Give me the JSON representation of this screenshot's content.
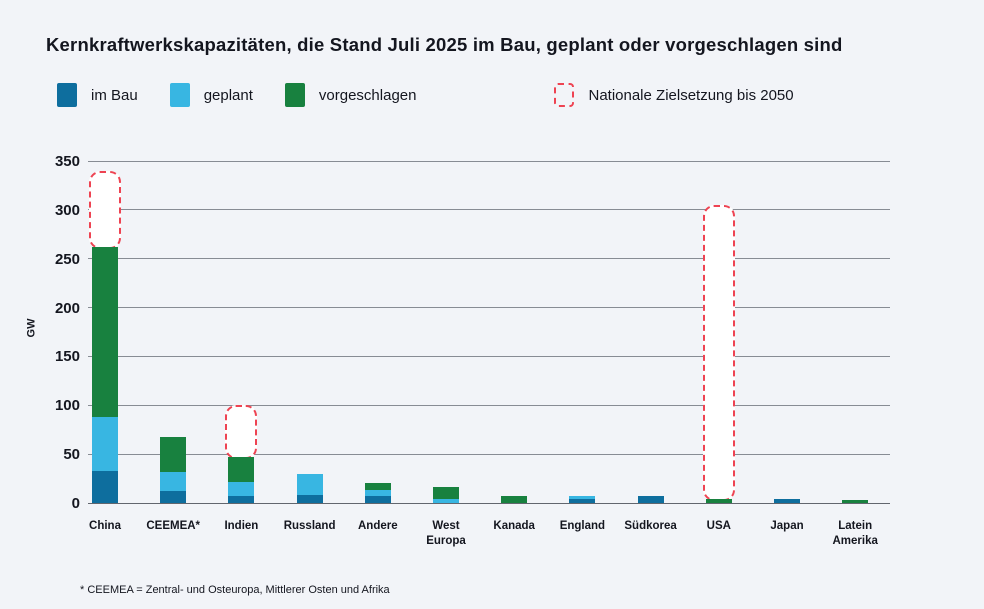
{
  "title": "Kernkraftwerkskapazitäten, die Stand Juli 2025 im Bau, geplant oder vorgeschlagen sind",
  "legend": {
    "items": [
      {
        "key": "im_bau",
        "label": "im Bau",
        "color": "#0e6e9e"
      },
      {
        "key": "geplant",
        "label": "geplant",
        "color": "#38b6e2"
      },
      {
        "key": "vorgeschlagen",
        "label": "vorgeschlagen",
        "color": "#18813f"
      }
    ],
    "target": {
      "label": "Nationale Zielsetzung bis 2050",
      "color": "#ee4352"
    }
  },
  "footnote": "* CEEMEA = Zentral- und Osteuropa, Mittlerer Osten und Afrika",
  "colors": {
    "background": "#f2f4f8",
    "im_bau": "#0e6e9e",
    "geplant": "#38b6e2",
    "vorgeschlagen": "#18813f",
    "target_outline": "#ee4352",
    "gridline": "#878c94",
    "text": "#14161f"
  },
  "chart_data": {
    "type": "bar",
    "stacked": true,
    "title": "Kernkraftwerkskapazitäten, die Stand Juli 2025 im Bau, geplant oder vorgeschlagen sind",
    "xlabel": "",
    "ylabel": "GW",
    "ylim": [
      0,
      350
    ],
    "yticks": [
      0,
      50,
      100,
      150,
      200,
      250,
      300,
      350
    ],
    "grid": true,
    "legend_position": "top",
    "categories": [
      "China",
      "CEEMEA*",
      "Indien",
      "Russland",
      "Andere",
      "West Europa",
      "Kanada",
      "England",
      "Südkorea",
      "USA",
      "Japan",
      "Latein Amerika"
    ],
    "series": [
      {
        "name": "im Bau",
        "color": "#0e6e9e",
        "values": [
          33,
          12,
          7,
          8,
          7,
          0,
          0,
          4,
          7,
          0,
          4,
          0
        ]
      },
      {
        "name": "geplant",
        "color": "#38b6e2",
        "values": [
          55,
          20,
          15,
          22,
          6,
          4,
          0,
          3,
          0,
          0,
          0,
          0
        ]
      },
      {
        "name": "vorgeschlagen",
        "color": "#18813f",
        "values": [
          174,
          36,
          25,
          0,
          8,
          12,
          7,
          0,
          0,
          4,
          0,
          3
        ]
      }
    ],
    "totals": [
      262,
      68,
      47,
      30,
      21,
      16,
      7,
      7,
      7,
      4,
      4,
      3
    ],
    "national_targets": [
      {
        "category": "China",
        "from": 262,
        "to": 340
      },
      {
        "category": "Indien",
        "from": 47,
        "to": 100
      },
      {
        "category": "USA",
        "from": 4,
        "to": 305
      }
    ]
  }
}
